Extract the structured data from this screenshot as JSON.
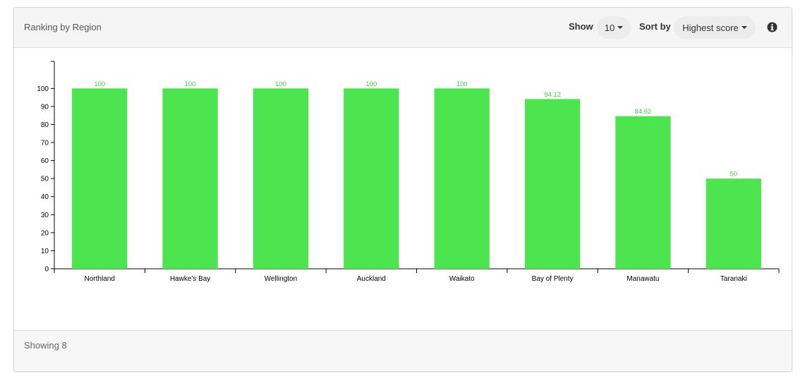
{
  "header": {
    "title": "Ranking by Region",
    "show_label": "Show",
    "show_value": "10",
    "sort_label": "Sort by",
    "sort_value": "Highest score",
    "info_icon": "info-circle-icon"
  },
  "footer": {
    "text": "Showing 8"
  },
  "colors": {
    "bar": "#4ce54f",
    "bar_label": "#3fcf3f",
    "axis": "#000000"
  },
  "chart_data": {
    "type": "bar",
    "title": "",
    "xlabel": "",
    "ylabel": "",
    "categories": [
      "Northland",
      "Hawke's Bay",
      "Wellington",
      "Auckland",
      "Waikato",
      "Bay of Plenty",
      "Manawatu",
      "Taranaki"
    ],
    "values": [
      100,
      100,
      100,
      100,
      100,
      94.12,
      84.62,
      50
    ],
    "value_labels": [
      "100",
      "100",
      "100",
      "100",
      "100",
      "94.12",
      "84.62",
      "50"
    ],
    "ylim": [
      0,
      115
    ],
    "yticks": [
      0,
      10,
      20,
      30,
      40,
      50,
      60,
      70,
      80,
      90,
      100
    ],
    "grid": false,
    "legend": "none"
  }
}
